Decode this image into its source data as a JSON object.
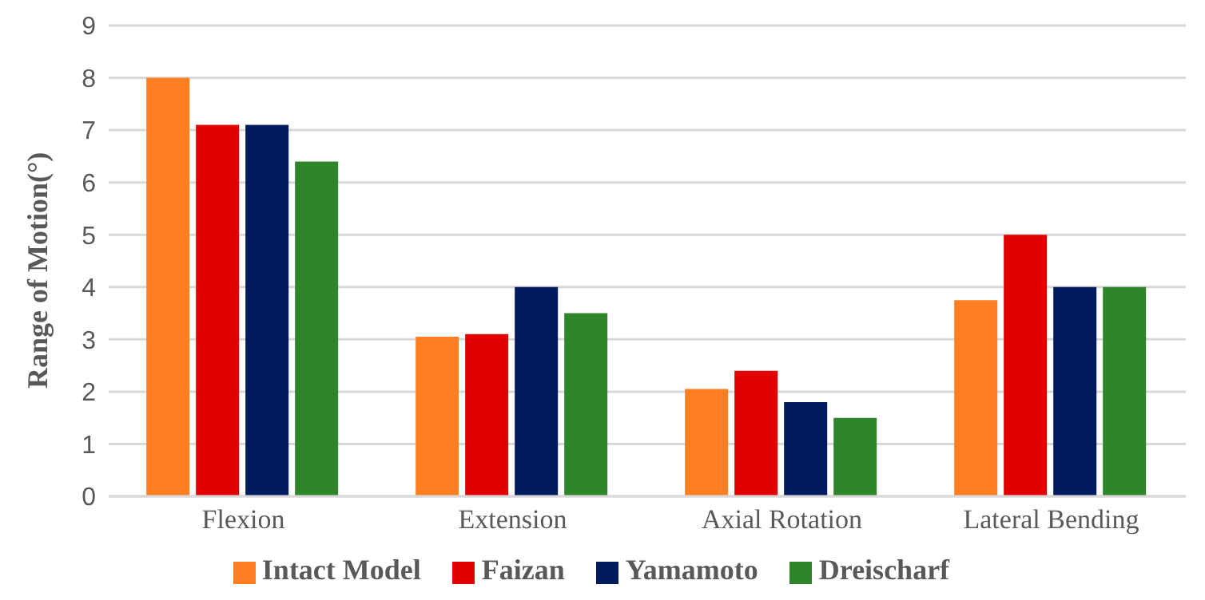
{
  "chart_data": {
    "type": "bar",
    "ylabel": "Range of  Motion(°)",
    "categories": [
      "Flexion",
      "Extension",
      "Axial Rotation",
      "Lateral Bending"
    ],
    "series": [
      {
        "name": "Intact Model",
        "color": "#fe7f22",
        "values": [
          8.0,
          3.05,
          2.05,
          3.75
        ]
      },
      {
        "name": "Faizan",
        "color": "#e00000",
        "values": [
          7.1,
          3.1,
          2.4,
          5.0
        ]
      },
      {
        "name": "Yamamoto",
        "color": "#001a5e",
        "values": [
          7.1,
          4.0,
          1.8,
          4.0
        ]
      },
      {
        "name": "Dreischarf",
        "color": "#2e852a",
        "values": [
          6.4,
          3.5,
          1.5,
          4.0
        ]
      }
    ],
    "ylim": [
      0,
      9
    ],
    "yticks": [
      0,
      1,
      2,
      3,
      4,
      5,
      6,
      7,
      8,
      9
    ],
    "grid": "y",
    "legend": "bottom"
  }
}
